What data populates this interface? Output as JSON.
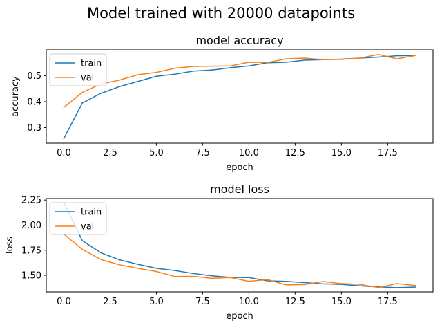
{
  "figure": {
    "suptitle": "Model trained with 20000 datapoints"
  },
  "chart_data": [
    {
      "type": "line",
      "title": "model accuracy",
      "xlabel": "epoch",
      "ylabel": "accuracy",
      "xlim": [
        -0.95,
        19.95
      ],
      "ylim": [
        0.24,
        0.6
      ],
      "xticks": [
        0.0,
        2.5,
        5.0,
        7.5,
        10.0,
        12.5,
        15.0,
        17.5
      ],
      "xtick_labels": [
        "0.0",
        "2.5",
        "5.0",
        "7.5",
        "10.0",
        "12.5",
        "15.0",
        "17.5"
      ],
      "yticks": [
        0.3,
        0.4,
        0.5
      ],
      "ytick_labels": [
        "0.3",
        "0.4",
        "0.5"
      ],
      "grid": false,
      "legend_position": "upper-left",
      "x": [
        0,
        1,
        2,
        3,
        4,
        5,
        6,
        7,
        8,
        9,
        10,
        11,
        12,
        13,
        14,
        15,
        16,
        17,
        18,
        19
      ],
      "series": [
        {
          "name": "train",
          "color": "#1f77b4",
          "values": [
            0.258,
            0.395,
            0.432,
            0.458,
            0.478,
            0.498,
            0.506,
            0.518,
            0.522,
            0.531,
            0.538,
            0.55,
            0.552,
            0.56,
            0.562,
            0.564,
            0.568,
            0.572,
            0.577,
            0.578
          ]
        },
        {
          "name": "val",
          "color": "#ff7f0e",
          "values": [
            0.378,
            0.436,
            0.468,
            0.483,
            0.504,
            0.513,
            0.529,
            0.536,
            0.537,
            0.538,
            0.552,
            0.551,
            0.565,
            0.568,
            0.562,
            0.563,
            0.568,
            0.582,
            0.565,
            0.578
          ]
        }
      ]
    },
    {
      "type": "line",
      "title": "model loss",
      "xlabel": "epoch",
      "ylabel": "loss",
      "xlim": [
        -0.95,
        19.95
      ],
      "ylim": [
        1.335,
        2.265
      ],
      "xticks": [
        0.0,
        2.5,
        5.0,
        7.5,
        10.0,
        12.5,
        15.0,
        17.5
      ],
      "xtick_labels": [
        "0.0",
        "2.5",
        "5.0",
        "7.5",
        "10.0",
        "12.5",
        "15.0",
        "17.5"
      ],
      "yticks": [
        1.5,
        1.75,
        2.0,
        2.25
      ],
      "ytick_labels": [
        "1.50",
        "1.75",
        "2.00",
        "2.25"
      ],
      "grid": false,
      "legend_position": "upper-left",
      "x": [
        0,
        1,
        2,
        3,
        4,
        5,
        6,
        7,
        8,
        9,
        10,
        11,
        12,
        13,
        14,
        15,
        16,
        17,
        18,
        19
      ],
      "series": [
        {
          "name": "train",
          "color": "#1f77b4",
          "values": [
            2.225,
            1.845,
            1.725,
            1.655,
            1.61,
            1.57,
            1.548,
            1.518,
            1.495,
            1.48,
            1.478,
            1.445,
            1.44,
            1.428,
            1.415,
            1.41,
            1.395,
            1.385,
            1.377,
            1.383
          ]
        },
        {
          "name": "val",
          "color": "#ff7f0e",
          "values": [
            1.91,
            1.758,
            1.658,
            1.605,
            1.57,
            1.538,
            1.488,
            1.49,
            1.47,
            1.478,
            1.44,
            1.458,
            1.405,
            1.408,
            1.438,
            1.418,
            1.41,
            1.378,
            1.418,
            1.398
          ]
        }
      ]
    }
  ]
}
